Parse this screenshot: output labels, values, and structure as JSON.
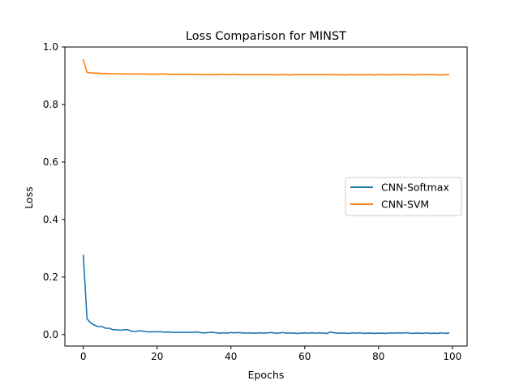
{
  "chart_data": {
    "type": "line",
    "title": "Loss Comparison for MINST",
    "xlabel": "Epochs",
    "ylabel": "Loss",
    "xlim": [
      -5,
      104
    ],
    "ylim": [
      -0.04,
      1.0
    ],
    "xticks": [
      0,
      20,
      40,
      60,
      80,
      100
    ],
    "xtick_labels": [
      "0",
      "20",
      "40",
      "60",
      "80",
      "100"
    ],
    "yticks": [
      0.0,
      0.2,
      0.4,
      0.6,
      0.8,
      1.0
    ],
    "ytick_labels": [
      "0.0",
      "0.2",
      "0.4",
      "0.6",
      "0.8",
      "1.0"
    ],
    "grid": false,
    "legend_position": "center-right",
    "series": [
      {
        "name": "CNN-Softmax",
        "color": "#1f77b4",
        "x": [
          0,
          1,
          2,
          3,
          4,
          5,
          6,
          7,
          8,
          9,
          10,
          11,
          12,
          13,
          14,
          15,
          16,
          17,
          18,
          19,
          20,
          21,
          22,
          23,
          24,
          25,
          26,
          27,
          28,
          29,
          30,
          31,
          32,
          33,
          34,
          35,
          36,
          37,
          38,
          39,
          40,
          41,
          42,
          43,
          44,
          45,
          46,
          47,
          48,
          49,
          50,
          51,
          52,
          53,
          54,
          55,
          56,
          57,
          58,
          59,
          60,
          61,
          62,
          63,
          64,
          65,
          66,
          67,
          68,
          69,
          70,
          71,
          72,
          73,
          74,
          75,
          76,
          77,
          78,
          79,
          80,
          81,
          82,
          83,
          84,
          85,
          86,
          87,
          88,
          89,
          90,
          91,
          92,
          93,
          94,
          95,
          96,
          97,
          98,
          99
        ],
        "y": [
          0.275,
          0.055,
          0.04,
          0.033,
          0.028,
          0.028,
          0.022,
          0.022,
          0.017,
          0.017,
          0.015,
          0.017,
          0.017,
          0.012,
          0.01,
          0.013,
          0.012,
          0.01,
          0.009,
          0.01,
          0.009,
          0.01,
          0.008,
          0.009,
          0.008,
          0.007,
          0.008,
          0.007,
          0.008,
          0.007,
          0.008,
          0.009,
          0.006,
          0.006,
          0.007,
          0.008,
          0.006,
          0.005,
          0.006,
          0.005,
          0.007,
          0.006,
          0.007,
          0.006,
          0.005,
          0.006,
          0.005,
          0.005,
          0.006,
          0.005,
          0.006,
          0.007,
          0.005,
          0.005,
          0.007,
          0.005,
          0.006,
          0.005,
          0.004,
          0.005,
          0.006,
          0.005,
          0.006,
          0.005,
          0.006,
          0.005,
          0.004,
          0.009,
          0.006,
          0.005,
          0.005,
          0.005,
          0.004,
          0.006,
          0.005,
          0.006,
          0.004,
          0.005,
          0.005,
          0.004,
          0.005,
          0.005,
          0.004,
          0.006,
          0.005,
          0.006,
          0.005,
          0.006,
          0.006,
          0.004,
          0.005,
          0.005,
          0.004,
          0.006,
          0.004,
          0.005,
          0.004,
          0.006,
          0.004,
          0.005
        ]
      },
      {
        "name": "CNN-SVM",
        "color": "#ff7f0e",
        "x": [
          0,
          1,
          2,
          3,
          4,
          5,
          6,
          7,
          8,
          9,
          10,
          11,
          12,
          13,
          14,
          15,
          16,
          17,
          18,
          19,
          20,
          21,
          22,
          23,
          24,
          25,
          26,
          27,
          28,
          29,
          30,
          31,
          32,
          33,
          34,
          35,
          36,
          37,
          38,
          39,
          40,
          41,
          42,
          43,
          44,
          45,
          46,
          47,
          48,
          49,
          50,
          51,
          52,
          53,
          54,
          55,
          56,
          57,
          58,
          59,
          60,
          61,
          62,
          63,
          64,
          65,
          66,
          67,
          68,
          69,
          70,
          71,
          72,
          73,
          74,
          75,
          76,
          77,
          78,
          79,
          80,
          81,
          82,
          83,
          84,
          85,
          86,
          87,
          88,
          89,
          90,
          91,
          92,
          93,
          94,
          95,
          96,
          97,
          98,
          99
        ],
        "y": [
          0.955,
          0.912,
          0.91,
          0.909,
          0.909,
          0.908,
          0.908,
          0.907,
          0.907,
          0.907,
          0.906,
          0.907,
          0.906,
          0.906,
          0.906,
          0.906,
          0.906,
          0.906,
          0.905,
          0.906,
          0.905,
          0.906,
          0.906,
          0.905,
          0.905,
          0.905,
          0.905,
          0.905,
          0.905,
          0.905,
          0.905,
          0.905,
          0.904,
          0.905,
          0.904,
          0.905,
          0.904,
          0.905,
          0.905,
          0.904,
          0.905,
          0.905,
          0.904,
          0.905,
          0.904,
          0.904,
          0.904,
          0.905,
          0.904,
          0.904,
          0.904,
          0.904,
          0.903,
          0.904,
          0.904,
          0.904,
          0.903,
          0.904,
          0.904,
          0.904,
          0.904,
          0.904,
          0.904,
          0.904,
          0.904,
          0.904,
          0.904,
          0.904,
          0.904,
          0.903,
          0.904,
          0.903,
          0.904,
          0.904,
          0.903,
          0.904,
          0.903,
          0.904,
          0.904,
          0.903,
          0.904,
          0.904,
          0.904,
          0.903,
          0.904,
          0.904,
          0.904,
          0.904,
          0.904,
          0.904,
          0.903,
          0.904,
          0.904,
          0.904,
          0.904,
          0.904,
          0.903,
          0.903,
          0.904,
          0.904
        ]
      }
    ]
  }
}
